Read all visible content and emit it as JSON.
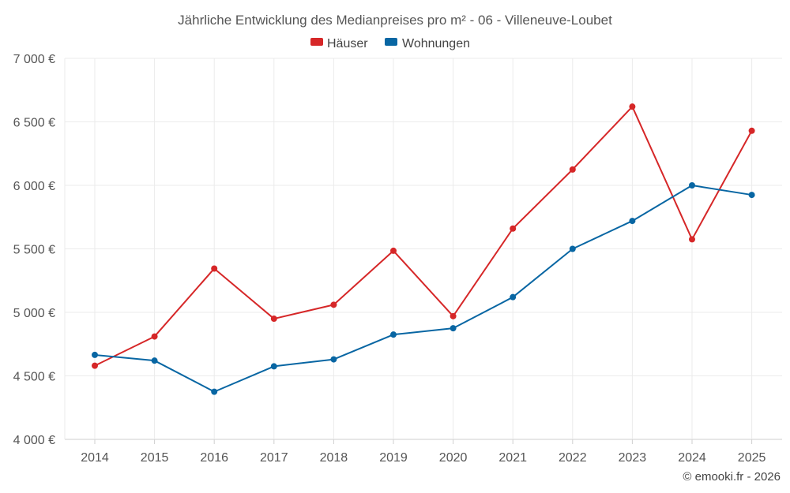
{
  "chart_data": {
    "type": "line",
    "title": "Jährliche Entwicklung des Medianpreises pro m² - 06 - Villeneuve-Loubet",
    "categories": [
      "2014",
      "2015",
      "2016",
      "2017",
      "2018",
      "2019",
      "2020",
      "2021",
      "2022",
      "2023",
      "2024",
      "2025"
    ],
    "series": [
      {
        "name": "Häuser",
        "color": "#d62728",
        "values": [
          4580,
          4810,
          5345,
          4950,
          5060,
          5485,
          4970,
          5660,
          6125,
          6620,
          5575,
          6430
        ]
      },
      {
        "name": "Wohnungen",
        "color": "#0866a3",
        "values": [
          4665,
          4620,
          4375,
          4575,
          4630,
          4825,
          4875,
          5120,
          5500,
          5720,
          6000,
          5925
        ]
      }
    ],
    "ylim": [
      4000,
      7000
    ],
    "yticks": [
      4000,
      4500,
      5000,
      5500,
      6000,
      6500,
      7000
    ],
    "ytick_labels": [
      "4 000 €",
      "4 500 €",
      "5 000 €",
      "5 500 €",
      "6 000 €",
      "6 500 €",
      "7 000 €"
    ],
    "grid": true,
    "legend": "top-center",
    "xlabel": "",
    "ylabel": ""
  },
  "credit": "© emooki.fr - 2026"
}
